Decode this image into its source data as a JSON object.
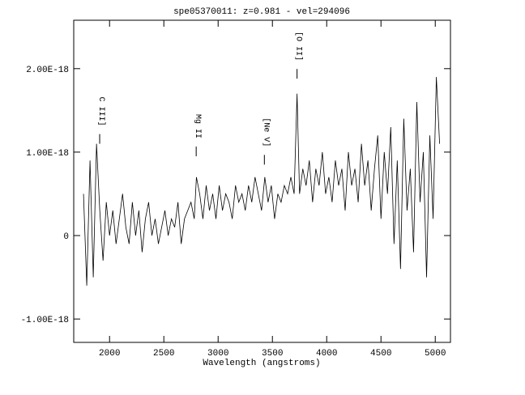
{
  "chart_data": {
    "type": "line",
    "title": "spe05370011: z=0.981 - vel=294096",
    "x_label": "Wavelength (angstroms)",
    "color": "#000000",
    "x": [
      1760,
      1790,
      1820,
      1850,
      1880,
      1910,
      1940,
      1970,
      2000,
      2030,
      2060,
      2090,
      2120,
      2150,
      2180,
      2210,
      2240,
      2270,
      2300,
      2330,
      2360,
      2390,
      2420,
      2450,
      2480,
      2510,
      2540,
      2570,
      2600,
      2630,
      2660,
      2690,
      2720,
      2750,
      2780,
      2800,
      2830,
      2860,
      2890,
      2920,
      2950,
      2980,
      3010,
      3040,
      3070,
      3100,
      3130,
      3160,
      3190,
      3220,
      3250,
      3280,
      3310,
      3340,
      3370,
      3400,
      3430,
      3460,
      3490,
      3520,
      3550,
      3580,
      3610,
      3640,
      3670,
      3700,
      3727,
      3750,
      3780,
      3810,
      3840,
      3870,
      3900,
      3930,
      3960,
      3990,
      4020,
      4050,
      4080,
      4110,
      4140,
      4170,
      4200,
      4230,
      4260,
      4290,
      4320,
      4350,
      4380,
      4410,
      4440,
      4470,
      4500,
      4530,
      4560,
      4590,
      4620,
      4650,
      4680,
      4710,
      4740,
      4770,
      4800,
      4830,
      4860,
      4890,
      4920,
      4950,
      4980,
      5010,
      5040
    ],
    "values": [
      5e-19,
      -6e-19,
      9e-19,
      -5e-19,
      1.1e-18,
      3e-19,
      -3e-19,
      4e-19,
      0,
      3e-19,
      -1e-19,
      2e-19,
      5e-19,
      1e-19,
      -1e-19,
      4e-19,
      0,
      3e-19,
      -2e-19,
      2e-19,
      4e-19,
      0,
      2e-19,
      -1e-19,
      1e-19,
      3e-19,
      0,
      2e-19,
      1e-19,
      4e-19,
      -1e-19,
      2e-19,
      3e-19,
      4e-19,
      2e-19,
      7e-19,
      5e-19,
      2e-19,
      6e-19,
      3e-19,
      5e-19,
      2e-19,
      6e-19,
      3e-19,
      5e-19,
      4e-19,
      2e-19,
      6e-19,
      4e-19,
      5e-19,
      3e-19,
      6e-19,
      4e-19,
      7e-19,
      5e-19,
      3e-19,
      7e-19,
      4e-19,
      6e-19,
      2e-19,
      5e-19,
      4e-19,
      6e-19,
      5e-19,
      7e-19,
      5e-19,
      1.7e-18,
      5e-19,
      8e-19,
      6e-19,
      9e-19,
      4e-19,
      8e-19,
      6e-19,
      1e-18,
      5e-19,
      7e-19,
      4e-19,
      9e-19,
      6e-19,
      8e-19,
      3e-19,
      1e-18,
      6e-19,
      8e-19,
      4e-19,
      1.1e-18,
      6e-19,
      9e-19,
      3e-19,
      8e-19,
      1.2e-18,
      2e-19,
      1e-18,
      5e-19,
      1.3e-18,
      -1e-19,
      9e-19,
      -4e-19,
      1.4e-18,
      3e-19,
      8e-19,
      -2e-19,
      1.6e-18,
      4e-19,
      1e-18,
      -5e-19,
      1.2e-18,
      2e-19,
      1.9e-18,
      1.1e-18
    ],
    "xlim": [
      1670,
      5140
    ],
    "xticks": [
      2000,
      2500,
      3000,
      3500,
      4000,
      4500,
      5000
    ],
    "ylim": [
      -1.28e-18,
      2.58e-18
    ],
    "yticks": [
      {
        "value": -1e-18,
        "label": "-1.00E-18"
      },
      0,
      {
        "value": 1e-18,
        "label": "1.00E-18"
      },
      {
        "value": 2e-18,
        "label": "2.00E-18"
      }
    ],
    "annotations": [
      {
        "text": "C III]",
        "x": 1909,
        "y": 1.1e-18
      },
      {
        "text": "Mg II",
        "x": 2798,
        "y": 9.5e-19
      },
      {
        "text": "[Ne V]",
        "x": 3426,
        "y": 8.5e-19
      },
      {
        "text": "[O II]",
        "x": 3727,
        "y": 1.88e-18
      }
    ]
  }
}
